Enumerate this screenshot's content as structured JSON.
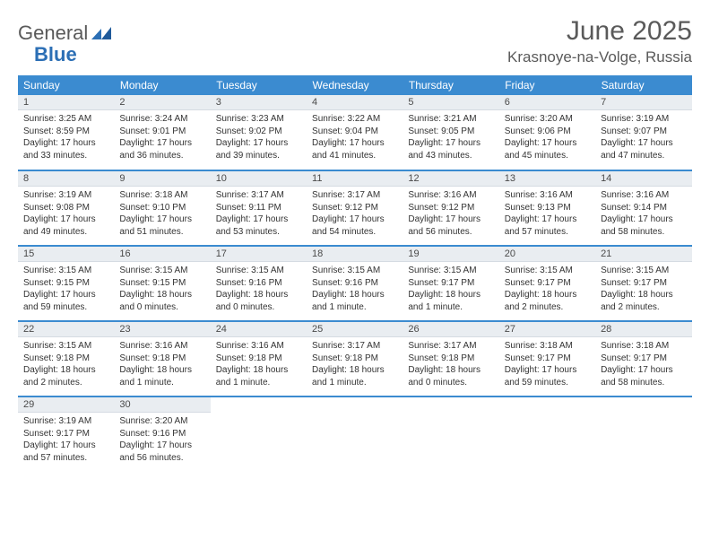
{
  "logo": {
    "text1": "General",
    "text2": "Blue"
  },
  "header": {
    "title": "June 2025",
    "location": "Krasnoye-na-Volge, Russia"
  },
  "colors": {
    "primary": "#3b8bd0",
    "daybar": "#e9edf1",
    "text": "#333333"
  },
  "dayHeaders": [
    "Sunday",
    "Monday",
    "Tuesday",
    "Wednesday",
    "Thursday",
    "Friday",
    "Saturday"
  ],
  "weeks": [
    [
      {
        "day": "1",
        "sunrise": "Sunrise: 3:25 AM",
        "sunset": "Sunset: 8:59 PM",
        "dl1": "Daylight: 17 hours",
        "dl2": "and 33 minutes."
      },
      {
        "day": "2",
        "sunrise": "Sunrise: 3:24 AM",
        "sunset": "Sunset: 9:01 PM",
        "dl1": "Daylight: 17 hours",
        "dl2": "and 36 minutes."
      },
      {
        "day": "3",
        "sunrise": "Sunrise: 3:23 AM",
        "sunset": "Sunset: 9:02 PM",
        "dl1": "Daylight: 17 hours",
        "dl2": "and 39 minutes."
      },
      {
        "day": "4",
        "sunrise": "Sunrise: 3:22 AM",
        "sunset": "Sunset: 9:04 PM",
        "dl1": "Daylight: 17 hours",
        "dl2": "and 41 minutes."
      },
      {
        "day": "5",
        "sunrise": "Sunrise: 3:21 AM",
        "sunset": "Sunset: 9:05 PM",
        "dl1": "Daylight: 17 hours",
        "dl2": "and 43 minutes."
      },
      {
        "day": "6",
        "sunrise": "Sunrise: 3:20 AM",
        "sunset": "Sunset: 9:06 PM",
        "dl1": "Daylight: 17 hours",
        "dl2": "and 45 minutes."
      },
      {
        "day": "7",
        "sunrise": "Sunrise: 3:19 AM",
        "sunset": "Sunset: 9:07 PM",
        "dl1": "Daylight: 17 hours",
        "dl2": "and 47 minutes."
      }
    ],
    [
      {
        "day": "8",
        "sunrise": "Sunrise: 3:19 AM",
        "sunset": "Sunset: 9:08 PM",
        "dl1": "Daylight: 17 hours",
        "dl2": "and 49 minutes."
      },
      {
        "day": "9",
        "sunrise": "Sunrise: 3:18 AM",
        "sunset": "Sunset: 9:10 PM",
        "dl1": "Daylight: 17 hours",
        "dl2": "and 51 minutes."
      },
      {
        "day": "10",
        "sunrise": "Sunrise: 3:17 AM",
        "sunset": "Sunset: 9:11 PM",
        "dl1": "Daylight: 17 hours",
        "dl2": "and 53 minutes."
      },
      {
        "day": "11",
        "sunrise": "Sunrise: 3:17 AM",
        "sunset": "Sunset: 9:12 PM",
        "dl1": "Daylight: 17 hours",
        "dl2": "and 54 minutes."
      },
      {
        "day": "12",
        "sunrise": "Sunrise: 3:16 AM",
        "sunset": "Sunset: 9:12 PM",
        "dl1": "Daylight: 17 hours",
        "dl2": "and 56 minutes."
      },
      {
        "day": "13",
        "sunrise": "Sunrise: 3:16 AM",
        "sunset": "Sunset: 9:13 PM",
        "dl1": "Daylight: 17 hours",
        "dl2": "and 57 minutes."
      },
      {
        "day": "14",
        "sunrise": "Sunrise: 3:16 AM",
        "sunset": "Sunset: 9:14 PM",
        "dl1": "Daylight: 17 hours",
        "dl2": "and 58 minutes."
      }
    ],
    [
      {
        "day": "15",
        "sunrise": "Sunrise: 3:15 AM",
        "sunset": "Sunset: 9:15 PM",
        "dl1": "Daylight: 17 hours",
        "dl2": "and 59 minutes."
      },
      {
        "day": "16",
        "sunrise": "Sunrise: 3:15 AM",
        "sunset": "Sunset: 9:15 PM",
        "dl1": "Daylight: 18 hours",
        "dl2": "and 0 minutes."
      },
      {
        "day": "17",
        "sunrise": "Sunrise: 3:15 AM",
        "sunset": "Sunset: 9:16 PM",
        "dl1": "Daylight: 18 hours",
        "dl2": "and 0 minutes."
      },
      {
        "day": "18",
        "sunrise": "Sunrise: 3:15 AM",
        "sunset": "Sunset: 9:16 PM",
        "dl1": "Daylight: 18 hours",
        "dl2": "and 1 minute."
      },
      {
        "day": "19",
        "sunrise": "Sunrise: 3:15 AM",
        "sunset": "Sunset: 9:17 PM",
        "dl1": "Daylight: 18 hours",
        "dl2": "and 1 minute."
      },
      {
        "day": "20",
        "sunrise": "Sunrise: 3:15 AM",
        "sunset": "Sunset: 9:17 PM",
        "dl1": "Daylight: 18 hours",
        "dl2": "and 2 minutes."
      },
      {
        "day": "21",
        "sunrise": "Sunrise: 3:15 AM",
        "sunset": "Sunset: 9:17 PM",
        "dl1": "Daylight: 18 hours",
        "dl2": "and 2 minutes."
      }
    ],
    [
      {
        "day": "22",
        "sunrise": "Sunrise: 3:15 AM",
        "sunset": "Sunset: 9:18 PM",
        "dl1": "Daylight: 18 hours",
        "dl2": "and 2 minutes."
      },
      {
        "day": "23",
        "sunrise": "Sunrise: 3:16 AM",
        "sunset": "Sunset: 9:18 PM",
        "dl1": "Daylight: 18 hours",
        "dl2": "and 1 minute."
      },
      {
        "day": "24",
        "sunrise": "Sunrise: 3:16 AM",
        "sunset": "Sunset: 9:18 PM",
        "dl1": "Daylight: 18 hours",
        "dl2": "and 1 minute."
      },
      {
        "day": "25",
        "sunrise": "Sunrise: 3:17 AM",
        "sunset": "Sunset: 9:18 PM",
        "dl1": "Daylight: 18 hours",
        "dl2": "and 1 minute."
      },
      {
        "day": "26",
        "sunrise": "Sunrise: 3:17 AM",
        "sunset": "Sunset: 9:18 PM",
        "dl1": "Daylight: 18 hours",
        "dl2": "and 0 minutes."
      },
      {
        "day": "27",
        "sunrise": "Sunrise: 3:18 AM",
        "sunset": "Sunset: 9:17 PM",
        "dl1": "Daylight: 17 hours",
        "dl2": "and 59 minutes."
      },
      {
        "day": "28",
        "sunrise": "Sunrise: 3:18 AM",
        "sunset": "Sunset: 9:17 PM",
        "dl1": "Daylight: 17 hours",
        "dl2": "and 58 minutes."
      }
    ],
    [
      {
        "day": "29",
        "sunrise": "Sunrise: 3:19 AM",
        "sunset": "Sunset: 9:17 PM",
        "dl1": "Daylight: 17 hours",
        "dl2": "and 57 minutes."
      },
      {
        "day": "30",
        "sunrise": "Sunrise: 3:20 AM",
        "sunset": "Sunset: 9:16 PM",
        "dl1": "Daylight: 17 hours",
        "dl2": "and 56 minutes."
      },
      null,
      null,
      null,
      null,
      null
    ]
  ]
}
